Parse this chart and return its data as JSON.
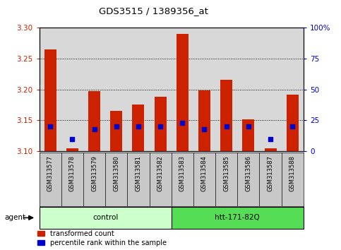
{
  "title": "GDS3515 / 1389356_at",
  "samples": [
    "GSM313577",
    "GSM313578",
    "GSM313579",
    "GSM313580",
    "GSM313581",
    "GSM313582",
    "GSM313583",
    "GSM313584",
    "GSM313585",
    "GSM313586",
    "GSM313587",
    "GSM313588"
  ],
  "transformed_count": [
    3.265,
    3.105,
    3.197,
    3.165,
    3.175,
    3.188,
    3.29,
    3.198,
    3.215,
    3.152,
    3.105,
    3.192
  ],
  "percentile_rank": [
    20,
    10,
    18,
    20,
    20,
    20,
    23,
    18,
    20,
    20,
    10,
    20
  ],
  "baseline": 3.1,
  "ylim_left": [
    3.1,
    3.3
  ],
  "ylim_right": [
    0,
    100
  ],
  "yticks_left": [
    3.1,
    3.15,
    3.2,
    3.25,
    3.3
  ],
  "yticks_right": [
    0,
    25,
    50,
    75,
    100
  ],
  "ytick_labels_right": [
    "0",
    "25",
    "50",
    "75",
    "100%"
  ],
  "grid_values": [
    3.15,
    3.2,
    3.25
  ],
  "agent_groups": [
    {
      "label": "control",
      "start": 0,
      "end": 6,
      "color": "#ccffcc"
    },
    {
      "label": "htt-171-82Q",
      "start": 6,
      "end": 12,
      "color": "#55dd55"
    }
  ],
  "agent_label": "agent",
  "bar_color": "#cc2200",
  "dot_color": "#0000cc",
  "bar_width": 0.55,
  "legend_items": [
    {
      "color": "#cc2200",
      "label": "transformed count"
    },
    {
      "color": "#0000cc",
      "label": "percentile rank within the sample"
    }
  ],
  "plot_bg_color": "#d8d8d8",
  "left_tick_color": "#cc2200",
  "right_tick_color": "#0000cc",
  "label_bg_color": "#c8c8c8"
}
